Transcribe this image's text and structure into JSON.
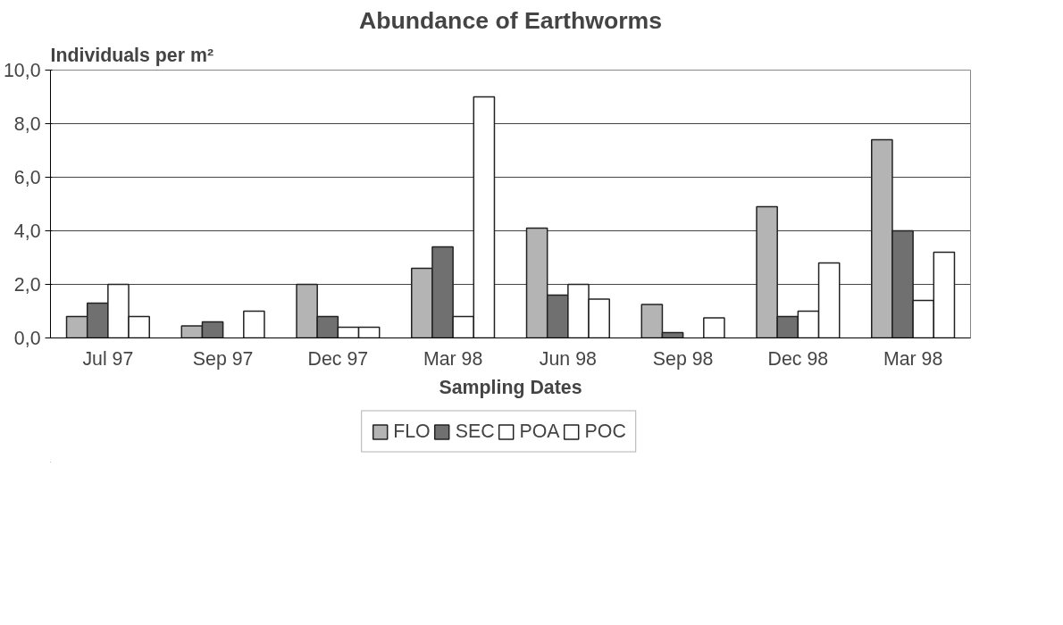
{
  "chart_data": {
    "type": "bar",
    "title": "Abundance of Earthworms",
    "ylabel": "Individuals per m²",
    "xlabel": "Sampling Dates",
    "categories": [
      "Jul 97",
      "Sep 97",
      "Dec 97",
      "Mar 98",
      "Jun 98",
      "Sep 98",
      "Dec 98",
      "Mar 98"
    ],
    "series": [
      {
        "name": "FLO",
        "color": "#b4b4b4",
        "values": [
          0.8,
          0.45,
          2.0,
          2.6,
          4.1,
          1.25,
          4.9,
          7.4
        ]
      },
      {
        "name": "SEC",
        "color": "#707070",
        "values": [
          1.3,
          0.6,
          0.8,
          3.4,
          1.6,
          0.2,
          0.8,
          4.0
        ]
      },
      {
        "name": "POA",
        "color": "#ffffff",
        "values": [
          2.0,
          null,
          0.4,
          0.8,
          2.0,
          null,
          1.0,
          1.4
        ]
      },
      {
        "name": "POC",
        "color": "#ffffff",
        "values": [
          0.8,
          1.0,
          0.4,
          9.0,
          1.45,
          0.75,
          2.8,
          3.2
        ]
      }
    ],
    "ylim": [
      0,
      10
    ],
    "yticks": [
      {
        "value": 0,
        "label": "0,0"
      },
      {
        "value": 2,
        "label": "2,0"
      },
      {
        "value": 4,
        "label": "4,0"
      },
      {
        "value": 6,
        "label": "6,0"
      },
      {
        "value": 8,
        "label": "8,0"
      },
      {
        "value": 10,
        "label": "10,0"
      }
    ],
    "grid": "y",
    "legend": "bottom"
  }
}
